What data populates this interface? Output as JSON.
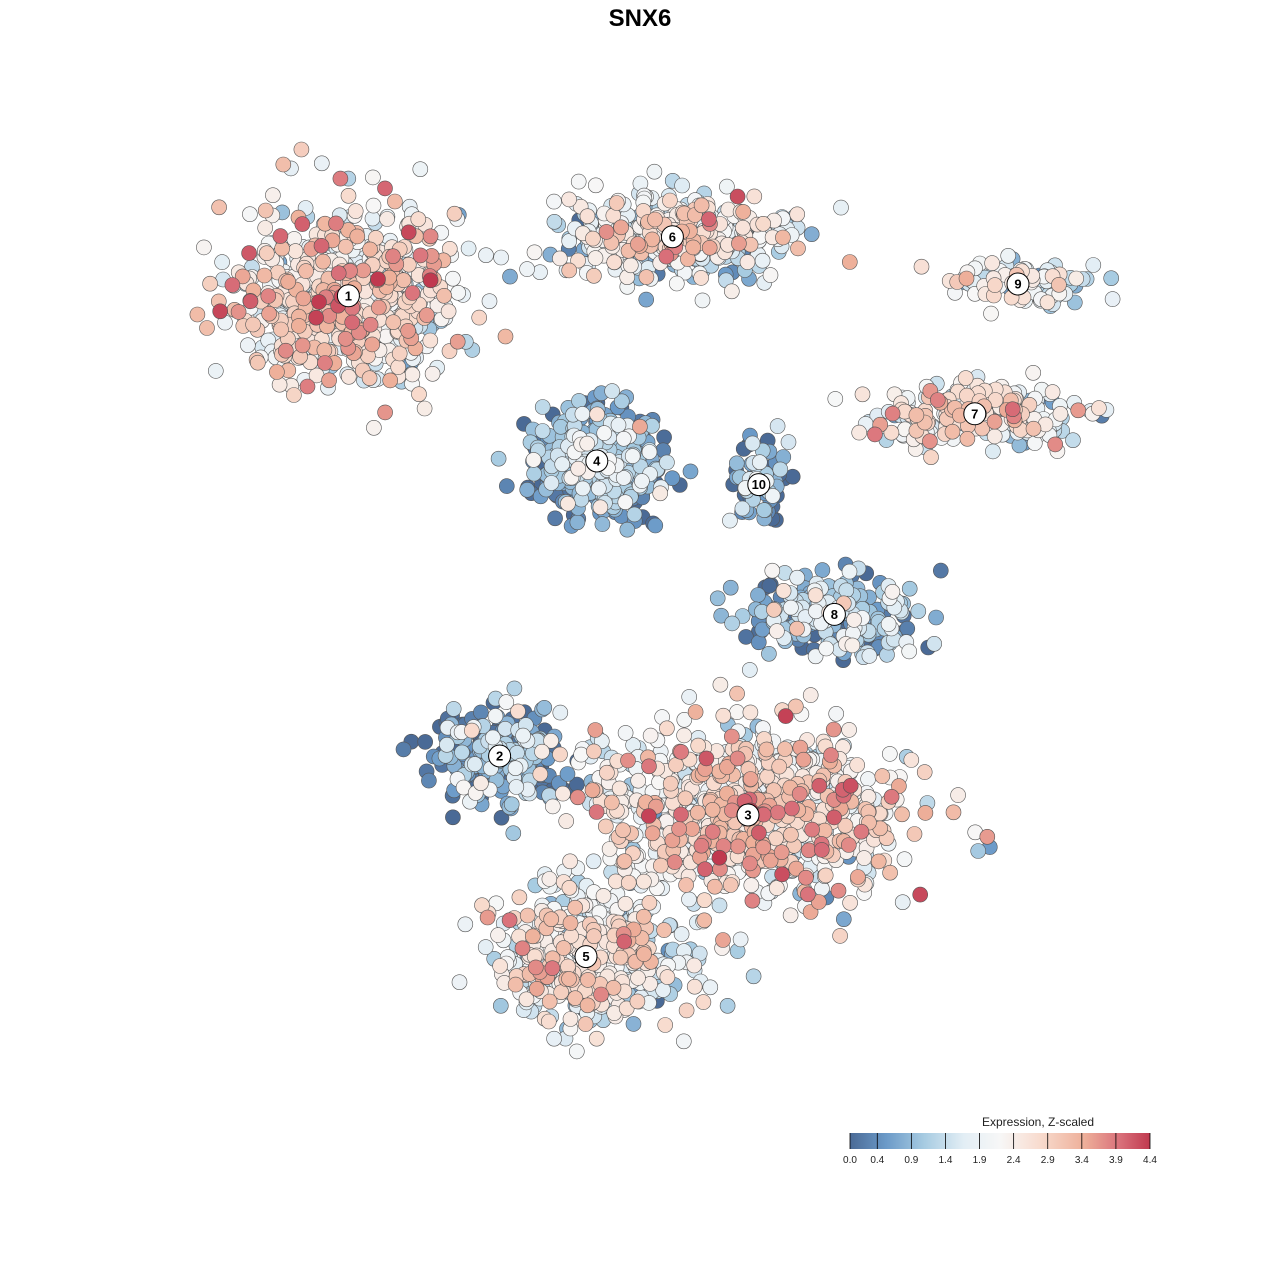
{
  "chart_data": {
    "type": "scatter",
    "title": "SNX6",
    "legend": {
      "title": "Expression, Z-scaled",
      "ticks": [
        "0.0",
        "0.4",
        "0.9",
        "1.4",
        "1.9",
        "2.4",
        "2.9",
        "3.4",
        "3.9",
        "4.4"
      ],
      "range": [
        0.0,
        4.4
      ],
      "placement": "bottom-right"
    },
    "color_scale": [
      "#4a6a96",
      "#6b9ac8",
      "#a8cce2",
      "#e3eef5",
      "#f7f7f7",
      "#f8dccf",
      "#eeb09a",
      "#d9707a",
      "#c0394f"
    ],
    "clusters": [
      {
        "label": "1",
        "x": -27,
        "y": 19,
        "spread": [
          9,
          7
        ],
        "mean": 2.35,
        "n": 700
      },
      {
        "label": "6",
        "x": 3,
        "y": 24,
        "spread": [
          9,
          3.2
        ],
        "mean": 1.9,
        "n": 520
      },
      {
        "label": "9",
        "x": 35,
        "y": 20,
        "spread": [
          6,
          2
        ],
        "mean": 1.7,
        "n": 110
      },
      {
        "label": "4",
        "x": -4,
        "y": 5,
        "spread": [
          5,
          3.8
        ],
        "mean": 0.55,
        "n": 620
      },
      {
        "label": "10",
        "x": 11,
        "y": 3,
        "spread": [
          2.5,
          3
        ],
        "mean": 0.5,
        "n": 80
      },
      {
        "label": "7",
        "x": 31,
        "y": 9,
        "spread": [
          9,
          2.4
        ],
        "mean": 2.1,
        "n": 220
      },
      {
        "label": "8",
        "x": 18,
        "y": -8,
        "spread": [
          7,
          3
        ],
        "mean": 1.0,
        "n": 260
      },
      {
        "label": "2",
        "x": -13,
        "y": -20,
        "spread": [
          6,
          3.5
        ],
        "mean": 0.7,
        "n": 260
      },
      {
        "label": "3",
        "x": 10,
        "y": -25,
        "spread": [
          13,
          6.5
        ],
        "mean": 2.35,
        "n": 900
      },
      {
        "label": "5",
        "x": -5,
        "y": -37,
        "spread": [
          8,
          5
        ],
        "mean": 1.9,
        "n": 520
      }
    ]
  }
}
